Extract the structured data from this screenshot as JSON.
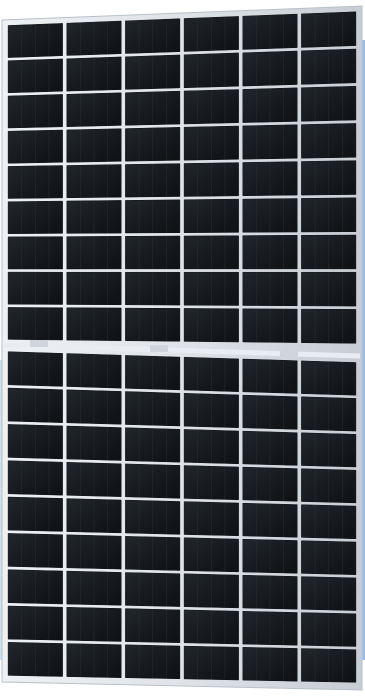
{
  "image": {
    "subject": "solar-panel",
    "columns": 6,
    "rows_top_half": 9,
    "rows_bottom_half": 9,
    "cell_type": "half-cut monocrystalline",
    "colors": {
      "background": "#ffffff",
      "frame": "#dfe3e8",
      "frame_shadow": "#b9c0c8",
      "cell": "#16191d",
      "cell_sheen": "#2a3036",
      "busbar_gap": "#e9edf1",
      "edge_glow": "#2f7fd6"
    }
  }
}
